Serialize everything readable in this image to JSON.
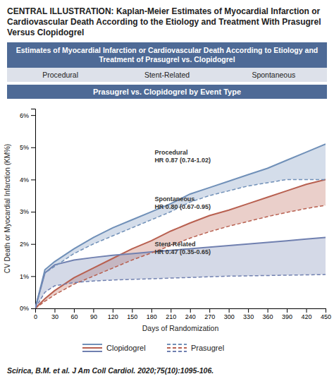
{
  "chart_data": {
    "type": "line",
    "title": "CENTRAL ILLUSTRATION: Kaplan-Meier Estimates of Myocardial Infarction or Cardiovascular Death According to the Etiology and Treatment With Prasugrel Versus Clopidogrel",
    "subtitle": "Estimates of Myocardial Infarction or Cardiovascular Death According to Etiology and Treatment of Prasugrel vs. Clopidogrel",
    "panel_labels": [
      "Procedural",
      "Stent-Related",
      "Spontaneous"
    ],
    "chart_title": "Prasugrel vs. Clopidogrel by Event Type",
    "xlabel": "Days of Randomization",
    "ylabel": "CV Death or Myocardial Infarction (KM%)",
    "x": [
      0,
      15,
      30,
      60,
      90,
      120,
      150,
      180,
      210,
      240,
      270,
      300,
      330,
      360,
      390,
      420,
      450
    ],
    "xlim": [
      0,
      450
    ],
    "xticks": [
      0,
      30,
      60,
      90,
      120,
      150,
      180,
      210,
      240,
      270,
      300,
      330,
      360,
      390,
      420,
      450
    ],
    "ylim": [
      0,
      6.2
    ],
    "yticks": [
      {
        "value": 0,
        "label": "0%"
      },
      {
        "value": 1,
        "label": "1%"
      },
      {
        "value": 2,
        "label": "2%"
      },
      {
        "value": 3,
        "label": "3%"
      },
      {
        "value": 4,
        "label": "4%"
      },
      {
        "value": 5,
        "label": "5%"
      },
      {
        "value": 6,
        "label": "6%"
      }
    ],
    "grid": false,
    "legend": "bottom",
    "series": [
      {
        "name": "Clopidogrel",
        "color": "#7090b8",
        "line_style": "solid",
        "values": [
          0.0,
          1.2,
          1.45,
          1.85,
          2.2,
          2.5,
          2.75,
          3.0,
          3.25,
          3.55,
          3.75,
          3.95,
          4.15,
          4.35,
          4.6,
          4.85,
          5.1
        ]
      },
      {
        "name": "Clopidogrel",
        "color": "#b86050",
        "line_style": "solid",
        "values": [
          0.0,
          0.3,
          0.55,
          0.95,
          1.25,
          1.55,
          1.85,
          2.1,
          2.4,
          2.65,
          2.88,
          3.05,
          3.25,
          3.45,
          3.65,
          3.85,
          4.0
        ]
      },
      {
        "name": "Clopidogrel",
        "color": "#7080b0",
        "line_style": "solid",
        "values": [
          0.0,
          1.1,
          1.35,
          1.5,
          1.58,
          1.65,
          1.7,
          1.75,
          1.8,
          1.85,
          1.9,
          1.95,
          2.0,
          2.05,
          2.1,
          2.15,
          2.2
        ]
      },
      {
        "name": "Prasugrel",
        "color": "#7090b8",
        "line_style": "dashed",
        "values": [
          0.0,
          1.1,
          1.3,
          1.7,
          2.0,
          2.25,
          2.5,
          2.75,
          3.0,
          3.3,
          3.5,
          3.65,
          3.8,
          3.9,
          4.0,
          4.0,
          4.0
        ]
      },
      {
        "name": "Prasugrel",
        "color": "#b86050",
        "line_style": "dashed",
        "values": [
          0.0,
          0.22,
          0.42,
          0.75,
          1.0,
          1.25,
          1.5,
          1.72,
          1.95,
          2.18,
          2.38,
          2.55,
          2.7,
          2.85,
          2.98,
          3.1,
          3.2
        ]
      },
      {
        "name": "Prasugrel",
        "color": "#7080b0",
        "line_style": "dashed",
        "values": [
          0.0,
          0.5,
          0.7,
          0.8,
          0.85,
          0.88,
          0.9,
          0.92,
          0.94,
          0.96,
          0.98,
          1.0,
          1.01,
          1.02,
          1.03,
          1.04,
          1.05
        ]
      }
    ],
    "annotations": [
      {
        "text": "Procedural\nHR 0.87 (0.74-1.02)",
        "x": 185,
        "y": 4.95
      },
      {
        "text": "Spontaneous\nHR 0.80 (0.67-0.95)",
        "x": 185,
        "y": 3.5
      },
      {
        "text": "Stent-Related\nHR 0.47 (0.35-0.65)",
        "x": 185,
        "y": 2.1
      }
    ],
    "caption": "Scirica, B.M. et al. J Am Coll Cardiol. 2020;75(10):1095-106."
  }
}
